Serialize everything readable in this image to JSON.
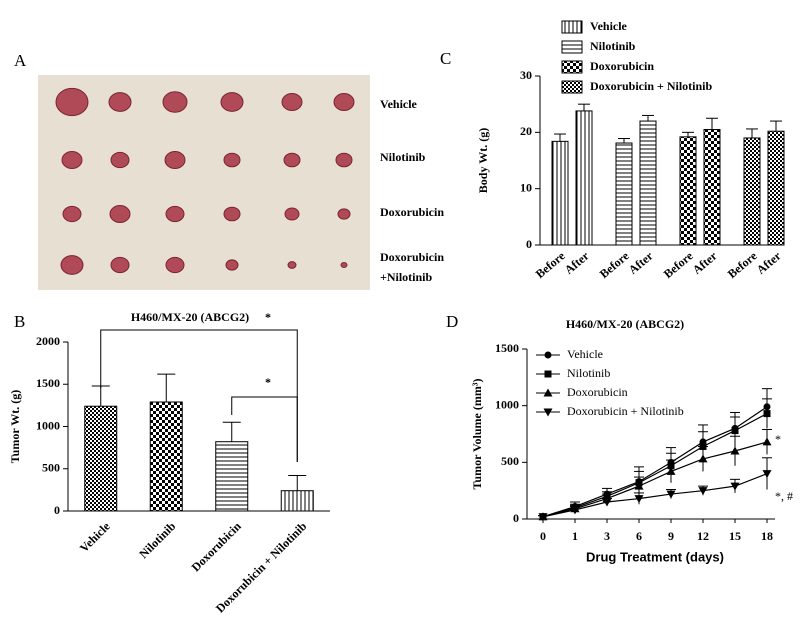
{
  "photo": {
    "panel_label": "A",
    "row_labels": [
      [
        "Vehicle"
      ],
      [
        "Nilotinib"
      ],
      [
        "Doxorubicin"
      ],
      [
        "Doxorubicin",
        "+Nilotinib"
      ]
    ]
  },
  "chart_data": [
    {
      "type": "bar",
      "panel_label": "B",
      "title": "H460/MX-20 (ABCG2)",
      "y_label": "Tumor Wt. (g)",
      "categories": [
        "Vehicle",
        "Nilotinib",
        "Doxorubicin",
        "Doxorubicin + Nilotinib"
      ],
      "values": [
        1240,
        1290,
        820,
        240
      ],
      "errors": [
        240,
        330,
        230,
        180
      ],
      "patterns": [
        "checker-dense",
        "checker",
        "hlines",
        "vlines"
      ],
      "color": "#000000",
      "ylim": [
        0,
        2000
      ],
      "yticks": [
        0,
        500,
        1000,
        1500,
        2000
      ],
      "annotations": [
        "*",
        "*"
      ]
    },
    {
      "type": "grouped_bar",
      "panel_label": "C",
      "y_label": "Body Wt. (g)",
      "categories": [
        "Before",
        "After"
      ],
      "series": [
        {
          "name": "Vehicle",
          "pattern": "vlines",
          "values": [
            18.4,
            23.8
          ],
          "errors": [
            1.3,
            1.2
          ]
        },
        {
          "name": "Nilotinib",
          "pattern": "hlines",
          "values": [
            18.1,
            22.0
          ],
          "errors": [
            0.8,
            1.0
          ]
        },
        {
          "name": "Doxorubicin",
          "pattern": "checker",
          "values": [
            19.2,
            20.5
          ],
          "errors": [
            0.8,
            2.0
          ]
        },
        {
          "name": "Doxorubicin + Nilotinib",
          "pattern": "checker-dense",
          "values": [
            19.0,
            20.2
          ],
          "errors": [
            1.6,
            1.8
          ]
        }
      ],
      "color": "#000000",
      "ylim": [
        0,
        30
      ],
      "yticks": [
        0,
        10,
        20,
        30
      ]
    },
    {
      "type": "line",
      "panel_label": "D",
      "title": "H460/MX-20 (ABCG2)",
      "x_label": "Drug Treatment (days)",
      "y_label": "Tumor Volume (mm³)",
      "categories": [
        "0",
        "1",
        "3",
        "6",
        "9",
        "12",
        "15",
        "18"
      ],
      "series": [
        {
          "name": "Vehicle",
          "marker": "circle",
          "values": [
            20,
            110,
            220,
            330,
            500,
            680,
            800,
            990
          ],
          "errors": [
            10,
            40,
            50,
            130,
            130,
            150,
            140,
            160
          ]
        },
        {
          "name": "Nilotinib",
          "marker": "square",
          "values": [
            20,
            100,
            200,
            320,
            470,
            640,
            780,
            930
          ],
          "errors": [
            10,
            30,
            40,
            100,
            110,
            130,
            120,
            130
          ]
        },
        {
          "name": "Doxorubicin",
          "marker": "triangle-up",
          "values": [
            20,
            90,
            180,
            290,
            420,
            530,
            600,
            680
          ],
          "errors": [
            10,
            30,
            40,
            80,
            100,
            110,
            130,
            110
          ]
        },
        {
          "name": "Doxorubicin + Nilotinib",
          "marker": "triangle-down",
          "values": [
            20,
            80,
            150,
            180,
            220,
            250,
            290,
            400
          ],
          "errors": [
            10,
            30,
            30,
            50,
            40,
            40,
            60,
            140
          ]
        }
      ],
      "color": "#000000",
      "ylim": [
        0,
        1500
      ],
      "yticks": [
        0,
        500,
        1000,
        1500
      ],
      "annotations": [
        "*",
        "*, #"
      ]
    }
  ]
}
